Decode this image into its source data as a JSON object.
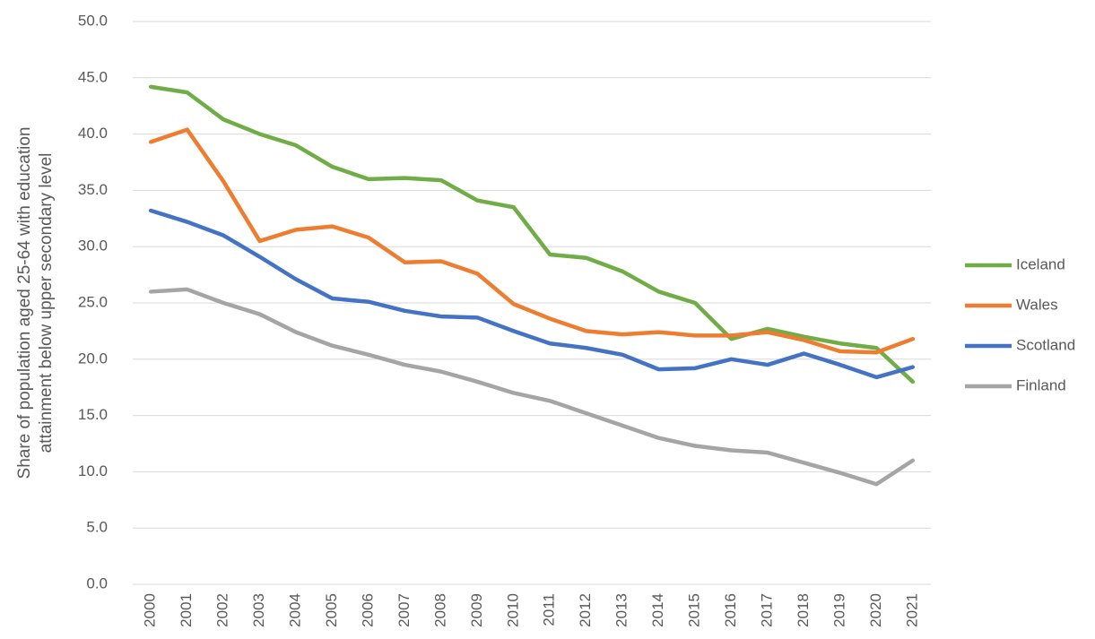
{
  "chart_data": {
    "type": "line",
    "ylabel": [
      "Share of population aged 25-64 with education",
      "attainment below upper secondary level"
    ],
    "categories": [
      "2000",
      "2001",
      "2002",
      "2003",
      "2004",
      "2005",
      "2006",
      "2007",
      "2008",
      "2009",
      "2010",
      "2011",
      "2012",
      "2013",
      "2014",
      "2015",
      "2016",
      "2017",
      "2018",
      "2019",
      "2020",
      "2021"
    ],
    "series": [
      {
        "name": "Iceland",
        "color": "#70ad47",
        "values": [
          44.2,
          43.7,
          41.3,
          40.0,
          39.0,
          37.1,
          36.0,
          36.1,
          35.9,
          34.1,
          33.5,
          29.3,
          29.0,
          27.8,
          26.0,
          25.0,
          21.8,
          22.7,
          22.0,
          21.4,
          21.0,
          18.0
        ]
      },
      {
        "name": "Wales",
        "color": "#ed7d31",
        "values": [
          39.3,
          40.4,
          35.8,
          30.5,
          31.5,
          31.8,
          30.8,
          28.6,
          28.7,
          27.6,
          24.9,
          23.6,
          22.5,
          22.2,
          22.4,
          22.1,
          22.1,
          22.4,
          21.7,
          20.7,
          20.6,
          21.8
        ]
      },
      {
        "name": "Scotland",
        "color": "#4472c4",
        "values": [
          33.2,
          32.2,
          31.0,
          29.1,
          27.1,
          25.4,
          25.1,
          24.3,
          23.8,
          23.7,
          22.5,
          21.4,
          21.0,
          20.4,
          19.1,
          19.2,
          20.0,
          19.5,
          20.5,
          19.5,
          18.4,
          19.3
        ]
      },
      {
        "name": "Finland",
        "color": "#a5a5a5",
        "values": [
          26.0,
          26.2,
          25.0,
          24.0,
          22.4,
          21.2,
          20.4,
          19.5,
          18.9,
          18.0,
          17.0,
          16.3,
          15.2,
          14.1,
          13.0,
          12.3,
          11.9,
          11.7,
          10.8,
          9.9,
          8.9,
          11.0
        ]
      }
    ],
    "ylim": [
      0,
      50
    ],
    "yticks": [
      {
        "value": 0,
        "label": "0.0"
      },
      {
        "value": 5,
        "label": "5.0"
      },
      {
        "value": 10,
        "label": "10.0"
      },
      {
        "value": 15,
        "label": "15.0"
      },
      {
        "value": 20,
        "label": "20.0"
      },
      {
        "value": 25,
        "label": "25.0"
      },
      {
        "value": 30,
        "label": "30.0"
      },
      {
        "value": 35,
        "label": "35.0"
      },
      {
        "value": 40,
        "label": "40.0"
      },
      {
        "value": 45,
        "label": "45.0"
      },
      {
        "value": 50,
        "label": "50.0"
      }
    ],
    "grid": true,
    "legend": "right"
  }
}
